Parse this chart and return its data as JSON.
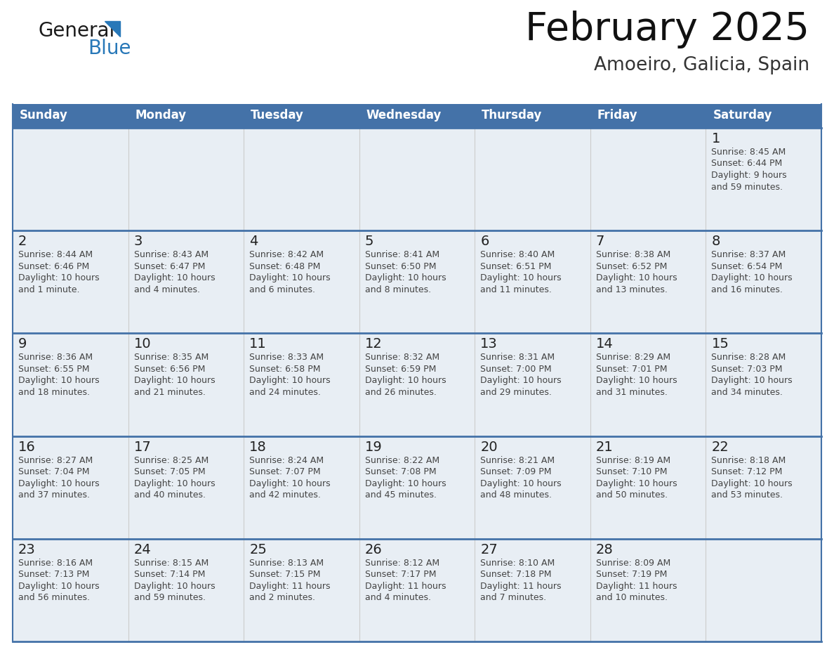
{
  "title": "February 2025",
  "subtitle": "Amoeiro, Galicia, Spain",
  "header_bg_color": "#4472a8",
  "header_text_color": "#ffffff",
  "separator_color": "#4472a8",
  "day_names": [
    "Sunday",
    "Monday",
    "Tuesday",
    "Wednesday",
    "Thursday",
    "Friday",
    "Saturday"
  ],
  "row_top_band_color": "#e8eef4",
  "row_bg_color": "#ffffff",
  "grid_line_color": "#4472a8",
  "vert_line_color": "#cccccc",
  "text_color": "#444444",
  "day_num_color": "#222222",
  "title_color": "#111111",
  "subtitle_color": "#333333",
  "logo_text_color": "#1a1a1a",
  "logo_blue_color": "#2878b8",
  "logo_triangle_color": "#2878b8",
  "days": [
    {
      "day": 1,
      "col": 6,
      "row": 0,
      "sunrise": "8:45 AM",
      "sunset": "6:44 PM",
      "dl1": "Daylight: 9 hours",
      "dl2": "and 59 minutes."
    },
    {
      "day": 2,
      "col": 0,
      "row": 1,
      "sunrise": "8:44 AM",
      "sunset": "6:46 PM",
      "dl1": "Daylight: 10 hours",
      "dl2": "and 1 minute."
    },
    {
      "day": 3,
      "col": 1,
      "row": 1,
      "sunrise": "8:43 AM",
      "sunset": "6:47 PM",
      "dl1": "Daylight: 10 hours",
      "dl2": "and 4 minutes."
    },
    {
      "day": 4,
      "col": 2,
      "row": 1,
      "sunrise": "8:42 AM",
      "sunset": "6:48 PM",
      "dl1": "Daylight: 10 hours",
      "dl2": "and 6 minutes."
    },
    {
      "day": 5,
      "col": 3,
      "row": 1,
      "sunrise": "8:41 AM",
      "sunset": "6:50 PM",
      "dl1": "Daylight: 10 hours",
      "dl2": "and 8 minutes."
    },
    {
      "day": 6,
      "col": 4,
      "row": 1,
      "sunrise": "8:40 AM",
      "sunset": "6:51 PM",
      "dl1": "Daylight: 10 hours",
      "dl2": "and 11 minutes."
    },
    {
      "day": 7,
      "col": 5,
      "row": 1,
      "sunrise": "8:38 AM",
      "sunset": "6:52 PM",
      "dl1": "Daylight: 10 hours",
      "dl2": "and 13 minutes."
    },
    {
      "day": 8,
      "col": 6,
      "row": 1,
      "sunrise": "8:37 AM",
      "sunset": "6:54 PM",
      "dl1": "Daylight: 10 hours",
      "dl2": "and 16 minutes."
    },
    {
      "day": 9,
      "col": 0,
      "row": 2,
      "sunrise": "8:36 AM",
      "sunset": "6:55 PM",
      "dl1": "Daylight: 10 hours",
      "dl2": "and 18 minutes."
    },
    {
      "day": 10,
      "col": 1,
      "row": 2,
      "sunrise": "8:35 AM",
      "sunset": "6:56 PM",
      "dl1": "Daylight: 10 hours",
      "dl2": "and 21 minutes."
    },
    {
      "day": 11,
      "col": 2,
      "row": 2,
      "sunrise": "8:33 AM",
      "sunset": "6:58 PM",
      "dl1": "Daylight: 10 hours",
      "dl2": "and 24 minutes."
    },
    {
      "day": 12,
      "col": 3,
      "row": 2,
      "sunrise": "8:32 AM",
      "sunset": "6:59 PM",
      "dl1": "Daylight: 10 hours",
      "dl2": "and 26 minutes."
    },
    {
      "day": 13,
      "col": 4,
      "row": 2,
      "sunrise": "8:31 AM",
      "sunset": "7:00 PM",
      "dl1": "Daylight: 10 hours",
      "dl2": "and 29 minutes."
    },
    {
      "day": 14,
      "col": 5,
      "row": 2,
      "sunrise": "8:29 AM",
      "sunset": "7:01 PM",
      "dl1": "Daylight: 10 hours",
      "dl2": "and 31 minutes."
    },
    {
      "day": 15,
      "col": 6,
      "row": 2,
      "sunrise": "8:28 AM",
      "sunset": "7:03 PM",
      "dl1": "Daylight: 10 hours",
      "dl2": "and 34 minutes."
    },
    {
      "day": 16,
      "col": 0,
      "row": 3,
      "sunrise": "8:27 AM",
      "sunset": "7:04 PM",
      "dl1": "Daylight: 10 hours",
      "dl2": "and 37 minutes."
    },
    {
      "day": 17,
      "col": 1,
      "row": 3,
      "sunrise": "8:25 AM",
      "sunset": "7:05 PM",
      "dl1": "Daylight: 10 hours",
      "dl2": "and 40 minutes."
    },
    {
      "day": 18,
      "col": 2,
      "row": 3,
      "sunrise": "8:24 AM",
      "sunset": "7:07 PM",
      "dl1": "Daylight: 10 hours",
      "dl2": "and 42 minutes."
    },
    {
      "day": 19,
      "col": 3,
      "row": 3,
      "sunrise": "8:22 AM",
      "sunset": "7:08 PM",
      "dl1": "Daylight: 10 hours",
      "dl2": "and 45 minutes."
    },
    {
      "day": 20,
      "col": 4,
      "row": 3,
      "sunrise": "8:21 AM",
      "sunset": "7:09 PM",
      "dl1": "Daylight: 10 hours",
      "dl2": "and 48 minutes."
    },
    {
      "day": 21,
      "col": 5,
      "row": 3,
      "sunrise": "8:19 AM",
      "sunset": "7:10 PM",
      "dl1": "Daylight: 10 hours",
      "dl2": "and 50 minutes."
    },
    {
      "day": 22,
      "col": 6,
      "row": 3,
      "sunrise": "8:18 AM",
      "sunset": "7:12 PM",
      "dl1": "Daylight: 10 hours",
      "dl2": "and 53 minutes."
    },
    {
      "day": 23,
      "col": 0,
      "row": 4,
      "sunrise": "8:16 AM",
      "sunset": "7:13 PM",
      "dl1": "Daylight: 10 hours",
      "dl2": "and 56 minutes."
    },
    {
      "day": 24,
      "col": 1,
      "row": 4,
      "sunrise": "8:15 AM",
      "sunset": "7:14 PM",
      "dl1": "Daylight: 10 hours",
      "dl2": "and 59 minutes."
    },
    {
      "day": 25,
      "col": 2,
      "row": 4,
      "sunrise": "8:13 AM",
      "sunset": "7:15 PM",
      "dl1": "Daylight: 11 hours",
      "dl2": "and 2 minutes."
    },
    {
      "day": 26,
      "col": 3,
      "row": 4,
      "sunrise": "8:12 AM",
      "sunset": "7:17 PM",
      "dl1": "Daylight: 11 hours",
      "dl2": "and 4 minutes."
    },
    {
      "day": 27,
      "col": 4,
      "row": 4,
      "sunrise": "8:10 AM",
      "sunset": "7:18 PM",
      "dl1": "Daylight: 11 hours",
      "dl2": "and 7 minutes."
    },
    {
      "day": 28,
      "col": 5,
      "row": 4,
      "sunrise": "8:09 AM",
      "sunset": "7:19 PM",
      "dl1": "Daylight: 11 hours",
      "dl2": "and 10 minutes."
    }
  ],
  "num_rows": 5,
  "num_cols": 7
}
